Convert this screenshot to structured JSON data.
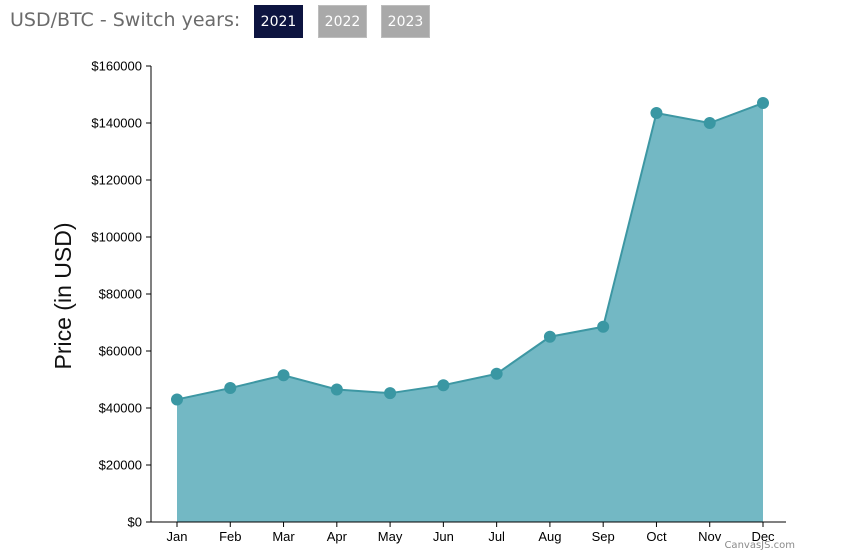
{
  "header": {
    "switch_label": "USD/BTC - Switch years:",
    "years": [
      {
        "label": "2021",
        "active": true
      },
      {
        "label": "2022",
        "active": false
      },
      {
        "label": "2023",
        "active": false
      }
    ]
  },
  "credit": "CanvasJS.com",
  "colors": {
    "fill": "#73b8c4",
    "line": "#3d97a3",
    "marker": "#3a97a3",
    "active_button": "#0d1440",
    "inactive_button": "#a9a9a9"
  },
  "chart_data": {
    "type": "area",
    "categories": [
      "Jan",
      "Feb",
      "Mar",
      "Apr",
      "May",
      "Jun",
      "Jul",
      "Aug",
      "Sep",
      "Oct",
      "Nov",
      "Dec"
    ],
    "values": [
      43000,
      47000,
      51500,
      46500,
      45200,
      48000,
      52000,
      65000,
      68500,
      143500,
      140000,
      147000
    ],
    "ylabel": "Price (in USD)",
    "xlabel": "",
    "ylim": [
      0,
      160000
    ],
    "yticks": [
      "$0",
      "$20000",
      "$40000",
      "$60000",
      "$80000",
      "$100000",
      "$120000",
      "$140000",
      "$160000"
    ],
    "grid": false,
    "markers": true
  }
}
